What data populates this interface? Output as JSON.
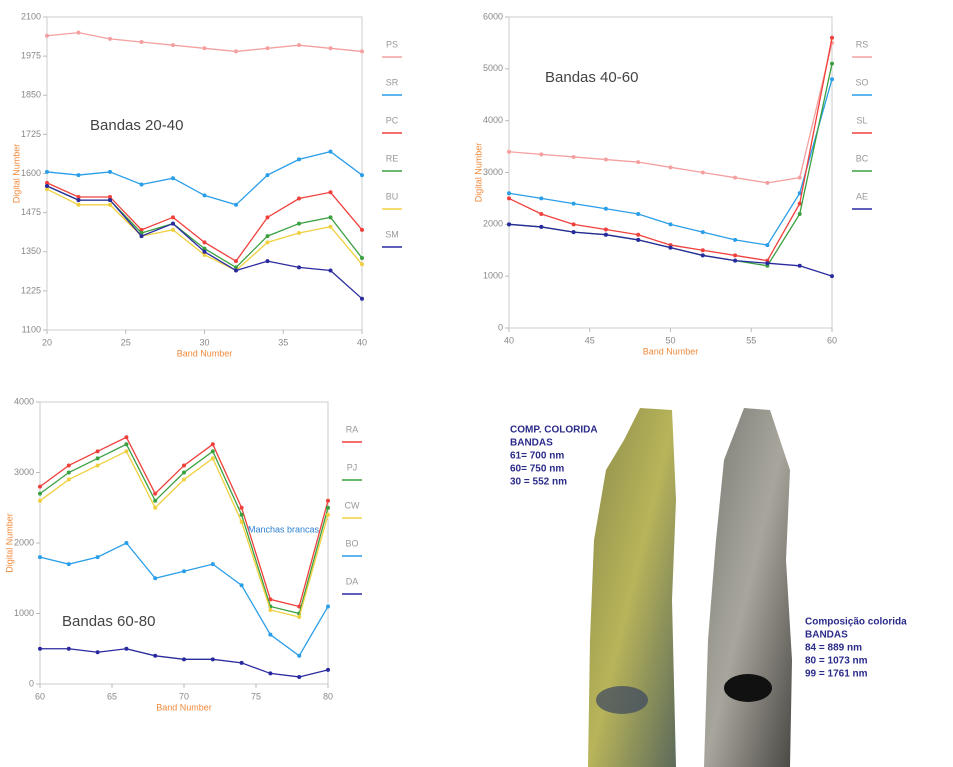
{
  "chart_data": [
    {
      "type": "line",
      "title": "Bandas 20-40",
      "xlabel": "Band Number",
      "ylabel": "Digital Number",
      "x": [
        20,
        22,
        24,
        26,
        28,
        30,
        32,
        34,
        36,
        38,
        40
      ],
      "xlim": [
        20,
        40
      ],
      "xticks": [
        20,
        25,
        30,
        35,
        40
      ],
      "ylim": [
        1100,
        2100
      ],
      "yticks": [
        1100,
        1225,
        1350,
        1475,
        1600,
        1725,
        1850,
        1975,
        2100
      ],
      "series": [
        {
          "name": "PS",
          "color": "#f4a0a0",
          "values": [
            2040,
            2050,
            2030,
            2020,
            2010,
            2000,
            1990,
            2000,
            2010,
            2000,
            1990
          ]
        },
        {
          "name": "SR",
          "color": "#2a9ee8",
          "values": [
            1605,
            1595,
            1605,
            1565,
            1585,
            1530,
            1500,
            1595,
            1645,
            1670,
            1595
          ]
        },
        {
          "name": "PC",
          "color": "#f0403c",
          "values": [
            1570,
            1525,
            1525,
            1420,
            1460,
            1380,
            1320,
            1460,
            1520,
            1540,
            1420
          ]
        },
        {
          "name": "RE",
          "color": "#3aa040",
          "values": [
            1560,
            1515,
            1515,
            1410,
            1440,
            1360,
            1300,
            1400,
            1440,
            1460,
            1330
          ]
        },
        {
          "name": "BU",
          "color": "#f0d040",
          "values": [
            1550,
            1500,
            1500,
            1400,
            1420,
            1340,
            1290,
            1380,
            1410,
            1430,
            1310
          ]
        },
        {
          "name": "SM",
          "color": "#2a2aa0",
          "values": [
            1560,
            1515,
            1515,
            1400,
            1440,
            1350,
            1290,
            1320,
            1300,
            1290,
            1200
          ]
        }
      ]
    },
    {
      "type": "line",
      "title": "Bandas 40-60",
      "xlabel": "Band Number",
      "ylabel": "Digital Number",
      "x": [
        40,
        42,
        44,
        46,
        48,
        50,
        52,
        54,
        56,
        58,
        60
      ],
      "xlim": [
        40,
        60
      ],
      "xticks": [
        40,
        45,
        50,
        55,
        60
      ],
      "ylim": [
        0,
        6000
      ],
      "yticks": [
        0,
        1000,
        2000,
        3000,
        4000,
        5000,
        6000
      ],
      "series": [
        {
          "name": "RS",
          "color": "#f4a0a0",
          "values": [
            3400,
            3350,
            3300,
            3250,
            3200,
            3100,
            3000,
            2900,
            2800,
            2900,
            5500
          ]
        },
        {
          "name": "SO",
          "color": "#2a9ee8",
          "values": [
            2600,
            2500,
            2400,
            2300,
            2200,
            2000,
            1850,
            1700,
            1600,
            2600,
            4800
          ]
        },
        {
          "name": "SL",
          "color": "#f0403c",
          "values": [
            2500,
            2200,
            2000,
            1900,
            1800,
            1600,
            1500,
            1400,
            1300,
            2400,
            5600
          ]
        },
        {
          "name": "BC",
          "color": "#3aa040",
          "values": [
            2000,
            1950,
            1850,
            1800,
            1700,
            1550,
            1400,
            1300,
            1200,
            2200,
            5100
          ]
        },
        {
          "name": "AE",
          "color": "#2a2aa0",
          "values": [
            2000,
            1950,
            1850,
            1800,
            1700,
            1550,
            1400,
            1300,
            1250,
            1200,
            1000
          ]
        }
      ]
    },
    {
      "type": "line",
      "title": "Bandas 60-80",
      "xlabel": "Band Number",
      "ylabel": "Digital Number",
      "annotation": "Manchas brancas",
      "x": [
        60,
        62,
        64,
        66,
        68,
        70,
        72,
        74,
        76,
        78,
        80
      ],
      "xlim": [
        60,
        80
      ],
      "xticks": [
        60,
        65,
        70,
        75,
        80
      ],
      "ylim": [
        0,
        4000
      ],
      "yticks": [
        0,
        1000,
        2000,
        3000,
        4000
      ],
      "series": [
        {
          "name": "RA",
          "color": "#f0403c",
          "values": [
            2800,
            3100,
            3300,
            3500,
            2700,
            3100,
            3400,
            2500,
            1200,
            1100,
            2600
          ]
        },
        {
          "name": "PJ",
          "color": "#3aa040",
          "values": [
            2700,
            3000,
            3200,
            3400,
            2600,
            3000,
            3300,
            2400,
            1100,
            1000,
            2500
          ]
        },
        {
          "name": "CW",
          "color": "#f0d040",
          "values": [
            2600,
            2900,
            3100,
            3300,
            2500,
            2900,
            3200,
            2300,
            1050,
            950,
            2400
          ]
        },
        {
          "name": "BO",
          "color": "#2a9ee8",
          "values": [
            1800,
            1700,
            1800,
            2000,
            1500,
            1600,
            1700,
            1400,
            700,
            400,
            1100
          ]
        },
        {
          "name": "DA",
          "color": "#2a2aa0",
          "values": [
            500,
            500,
            450,
            500,
            400,
            350,
            350,
            300,
            150,
            100,
            200
          ]
        }
      ]
    }
  ],
  "images": [
    {
      "caption": [
        "COMP. COLORIDA",
        "BANDAS",
        "61= 700 nm",
        "60= 750 nm",
        "30 = 552 nm"
      ]
    },
    {
      "caption": [
        "Composição colorida",
        "BANDAS",
        "84 = 889 nm",
        "80 = 1073 nm",
        "99 = 1761 nm"
      ]
    }
  ]
}
